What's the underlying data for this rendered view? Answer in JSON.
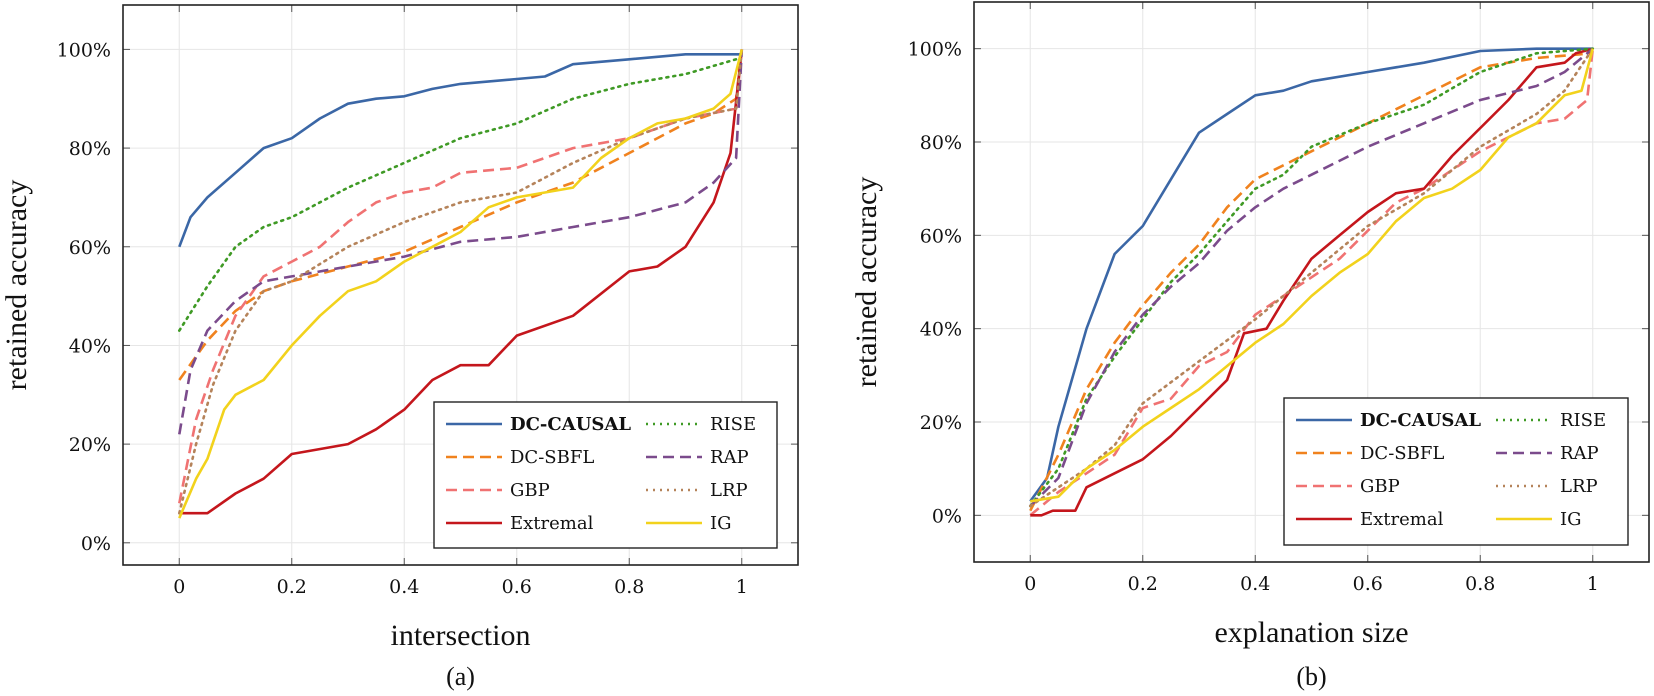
{
  "chart_data": [
    {
      "type": "line",
      "caption": "(a)",
      "xlabel": "intersection",
      "ylabel": "retained accuracy",
      "xlim": [
        -0.1,
        1.1
      ],
      "ylim": [
        -4.5,
        109
      ],
      "xticks": [
        0,
        0.2,
        0.4,
        0.6,
        0.8,
        1
      ],
      "xtick_labels": [
        "0",
        "0.2",
        "0.4",
        "0.6",
        "0.8",
        "1"
      ],
      "yticks": [
        0,
        20,
        40,
        60,
        80,
        100
      ],
      "ytick_labels": [
        "0%",
        "20%",
        "40%",
        "60%",
        "80%",
        "100%"
      ],
      "grid": true,
      "legend_position": "bottom-right",
      "series": [
        {
          "name": "DC-CAUSAL",
          "x": [
            0,
            0.02,
            0.05,
            0.1,
            0.15,
            0.2,
            0.25,
            0.3,
            0.35,
            0.4,
            0.45,
            0.5,
            0.6,
            0.65,
            0.7,
            0.8,
            0.9,
            0.99,
            1
          ],
          "y": [
            60,
            66,
            70,
            75,
            80,
            82,
            86,
            89,
            90,
            90.5,
            92,
            93,
            94,
            94.5,
            97,
            98,
            99,
            99,
            99
          ]
        },
        {
          "name": "DC-SBFL",
          "x": [
            0,
            0.05,
            0.1,
            0.15,
            0.2,
            0.3,
            0.4,
            0.5,
            0.6,
            0.7,
            0.8,
            0.9,
            0.95,
            0.99,
            1
          ],
          "y": [
            33,
            41,
            47,
            51,
            53,
            56,
            59,
            64,
            69,
            73,
            79,
            85,
            87,
            90,
            100
          ]
        },
        {
          "name": "GBP",
          "x": [
            0,
            0.03,
            0.06,
            0.1,
            0.15,
            0.2,
            0.25,
            0.3,
            0.35,
            0.4,
            0.45,
            0.5,
            0.6,
            0.7,
            0.8,
            0.9,
            0.99,
            1
          ],
          "y": [
            8,
            25,
            35,
            46,
            54,
            57,
            60,
            65,
            69,
            71,
            72,
            75,
            76,
            80,
            82,
            86,
            88,
            100
          ]
        },
        {
          "name": "Extremal",
          "x": [
            0,
            0.05,
            0.1,
            0.15,
            0.2,
            0.3,
            0.35,
            0.4,
            0.45,
            0.5,
            0.55,
            0.6,
            0.7,
            0.8,
            0.85,
            0.9,
            0.95,
            0.98,
            1
          ],
          "y": [
            6,
            6,
            10,
            13,
            18,
            20,
            23,
            27,
            33,
            36,
            36,
            42,
            46,
            55,
            56,
            60,
            69,
            79,
            100
          ]
        },
        {
          "name": "RISE",
          "x": [
            0,
            0.05,
            0.1,
            0.15,
            0.2,
            0.3,
            0.4,
            0.5,
            0.6,
            0.7,
            0.8,
            0.9,
            0.99
          ],
          "y": [
            43,
            52,
            60,
            64,
            66,
            72,
            77,
            82,
            85,
            90,
            93,
            95,
            98
          ]
        },
        {
          "name": "RAP",
          "x": [
            0,
            0.02,
            0.05,
            0.1,
            0.15,
            0.2,
            0.3,
            0.4,
            0.5,
            0.6,
            0.7,
            0.8,
            0.9,
            0.95,
            0.99,
            1
          ],
          "y": [
            22,
            35,
            43,
            49,
            53,
            54,
            56,
            58,
            61,
            62,
            64,
            66,
            69,
            73,
            78,
            100
          ]
        },
        {
          "name": "LRP",
          "x": [
            0,
            0.03,
            0.06,
            0.1,
            0.15,
            0.2,
            0.3,
            0.4,
            0.5,
            0.6,
            0.7,
            0.8,
            0.9,
            0.99,
            1
          ],
          "y": [
            6,
            20,
            32,
            43,
            51,
            53,
            60,
            65,
            69,
            71,
            77,
            82,
            86,
            88,
            100
          ]
        },
        {
          "name": "IG",
          "x": [
            0,
            0.03,
            0.05,
            0.08,
            0.1,
            0.15,
            0.2,
            0.25,
            0.3,
            0.35,
            0.4,
            0.45,
            0.5,
            0.55,
            0.6,
            0.65,
            0.7,
            0.75,
            0.8,
            0.85,
            0.9,
            0.95,
            0.98,
            1
          ],
          "y": [
            5,
            13,
            17,
            27,
            30,
            33,
            40,
            46,
            51,
            53,
            57,
            60,
            63,
            68,
            70,
            71,
            72,
            78,
            82,
            85,
            86,
            88,
            91,
            100
          ]
        }
      ]
    },
    {
      "type": "line",
      "caption": "(b)",
      "xlabel": "explanation size",
      "ylabel": "retained accuracy",
      "xlim": [
        -0.1,
        1.1
      ],
      "ylim": [
        -10,
        110
      ],
      "xticks": [
        0,
        0.2,
        0.4,
        0.6,
        0.8,
        1
      ],
      "xtick_labels": [
        "0",
        "0.2",
        "0.4",
        "0.6",
        "0.8",
        "1"
      ],
      "yticks": [
        0,
        20,
        40,
        60,
        80,
        100
      ],
      "ytick_labels": [
        "0%",
        "20%",
        "40%",
        "60%",
        "80%",
        "100%"
      ],
      "grid": true,
      "legend_position": "bottom-right",
      "series": [
        {
          "name": "DC-CAUSAL",
          "x": [
            0,
            0.03,
            0.05,
            0.1,
            0.15,
            0.2,
            0.25,
            0.3,
            0.35,
            0.4,
            0.45,
            0.5,
            0.6,
            0.7,
            0.8,
            0.9,
            1
          ],
          "y": [
            3,
            8,
            19,
            40,
            56,
            62,
            72,
            82,
            86,
            90,
            91,
            93,
            95,
            97,
            99.5,
            100,
            100
          ]
        },
        {
          "name": "DC-SBFL",
          "x": [
            0,
            0.05,
            0.1,
            0.15,
            0.2,
            0.25,
            0.3,
            0.35,
            0.4,
            0.45,
            0.5,
            0.6,
            0.7,
            0.8,
            0.9,
            1
          ],
          "y": [
            1,
            13,
            27,
            37,
            45,
            52,
            58,
            66,
            72,
            75,
            78,
            84,
            90,
            96,
            98,
            99
          ]
        },
        {
          "name": "GBP",
          "x": [
            0,
            0.05,
            0.1,
            0.15,
            0.2,
            0.25,
            0.3,
            0.35,
            0.4,
            0.45,
            0.5,
            0.55,
            0.6,
            0.65,
            0.7,
            0.75,
            0.8,
            0.9,
            0.95,
            0.99,
            1
          ],
          "y": [
            0,
            5,
            9,
            13,
            23,
            25,
            32,
            35,
            43,
            47,
            51,
            55,
            61,
            67,
            70,
            74,
            78,
            84,
            85,
            89,
            100
          ]
        },
        {
          "name": "Extremal",
          "x": [
            0,
            0.02,
            0.04,
            0.08,
            0.1,
            0.15,
            0.2,
            0.25,
            0.3,
            0.35,
            0.38,
            0.42,
            0.45,
            0.5,
            0.55,
            0.6,
            0.65,
            0.7,
            0.75,
            0.8,
            0.85,
            0.9,
            0.95,
            0.97,
            1
          ],
          "y": [
            0,
            0,
            1,
            1,
            6,
            9,
            12,
            17,
            23,
            29,
            39,
            40,
            46,
            55,
            60,
            65,
            69,
            70,
            77,
            83,
            89,
            96,
            97,
            99,
            100
          ]
        },
        {
          "name": "RISE",
          "x": [
            0,
            0.05,
            0.1,
            0.15,
            0.2,
            0.25,
            0.3,
            0.35,
            0.4,
            0.45,
            0.5,
            0.6,
            0.7,
            0.8,
            0.9,
            1
          ],
          "y": [
            2,
            10,
            25,
            34,
            42,
            50,
            56,
            63,
            70,
            73,
            79,
            84,
            88,
            95,
            99,
            100
          ]
        },
        {
          "name": "RAP",
          "x": [
            0,
            0.05,
            0.1,
            0.15,
            0.2,
            0.25,
            0.3,
            0.35,
            0.4,
            0.45,
            0.5,
            0.6,
            0.7,
            0.8,
            0.9,
            0.95,
            1
          ],
          "y": [
            2,
            8,
            24,
            35,
            43,
            49,
            54,
            61,
            66,
            70,
            73,
            79,
            84,
            89,
            92,
            95,
            100
          ]
        },
        {
          "name": "LRP",
          "x": [
            0,
            0.1,
            0.15,
            0.2,
            0.3,
            0.4,
            0.5,
            0.6,
            0.7,
            0.8,
            0.9,
            0.95,
            1
          ],
          "y": [
            2,
            10,
            15,
            24,
            33,
            42,
            52,
            62,
            69,
            79,
            86,
            91,
            100
          ]
        },
        {
          "name": "IG",
          "x": [
            0,
            0.05,
            0.1,
            0.15,
            0.2,
            0.25,
            0.3,
            0.35,
            0.4,
            0.45,
            0.5,
            0.55,
            0.6,
            0.65,
            0.7,
            0.75,
            0.8,
            0.85,
            0.9,
            0.95,
            0.98,
            1
          ],
          "y": [
            3,
            4,
            10,
            14,
            19,
            23,
            27,
            32,
            37,
            41,
            47,
            52,
            56,
            63,
            68,
            70,
            74,
            81,
            84,
            90,
            91,
            100
          ]
        }
      ]
    }
  ],
  "series_styles": {
    "DC-CAUSAL": {
      "color": "#3b67a6",
      "dash": "solid",
      "bold": true
    },
    "DC-SBFL": {
      "color": "#f0821e",
      "dash": "dashed"
    },
    "GBP": {
      "color": "#f07272",
      "dash": "dashed"
    },
    "Extremal": {
      "color": "#c4161c",
      "dash": "solid"
    },
    "RISE": {
      "color": "#3f9a25",
      "dash": "dotted"
    },
    "RAP": {
      "color": "#7b4b8c",
      "dash": "dashed"
    },
    "LRP": {
      "color": "#b5835a",
      "dash": "dotted"
    },
    "IG": {
      "color": "#f2d21c",
      "dash": "solid"
    }
  }
}
